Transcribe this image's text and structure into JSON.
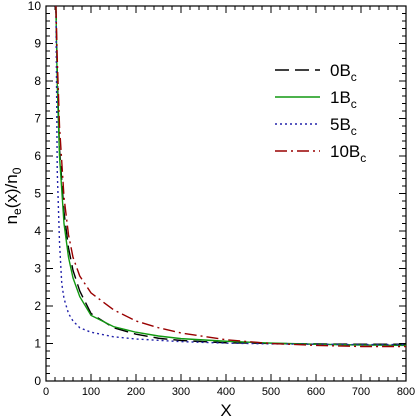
{
  "chart_data": {
    "type": "line",
    "xlabel": "X",
    "ylabel_main": "n",
    "ylabel_sub1": "e",
    "ylabel_mid": "(x)/n",
    "ylabel_sub2": "0",
    "xlim": [
      0,
      800
    ],
    "ylim": [
      0,
      10
    ],
    "xticks": [
      "0",
      "100",
      "200",
      "300",
      "400",
      "500",
      "600",
      "700",
      "800"
    ],
    "yticks": [
      "0",
      "1",
      "2",
      "3",
      "4",
      "5",
      "6",
      "7",
      "8",
      "9",
      "10"
    ],
    "grid": false,
    "legend_position": "top-right",
    "series": [
      {
        "name": "0B",
        "sub": "c",
        "color": "#000000",
        "dash": "14,6",
        "points": [
          [
            22,
            10
          ],
          [
            25,
            8.2
          ],
          [
            30,
            6.2
          ],
          [
            40,
            4.5
          ],
          [
            50,
            3.55
          ],
          [
            60,
            2.95
          ],
          [
            75,
            2.4
          ],
          [
            100,
            1.8
          ],
          [
            150,
            1.42
          ],
          [
            200,
            1.25
          ],
          [
            250,
            1.14
          ],
          [
            300,
            1.08
          ],
          [
            400,
            1.02
          ],
          [
            500,
            1.0
          ],
          [
            600,
            0.99
          ],
          [
            700,
            0.98
          ],
          [
            800,
            0.98
          ]
        ]
      },
      {
        "name": "1B",
        "sub": "c",
        "color": "#119911",
        "dash": "",
        "points": [
          [
            22,
            10
          ],
          [
            25,
            7.9
          ],
          [
            30,
            6.0
          ],
          [
            40,
            4.2
          ],
          [
            50,
            3.3
          ],
          [
            60,
            2.75
          ],
          [
            75,
            2.25
          ],
          [
            100,
            1.75
          ],
          [
            150,
            1.45
          ],
          [
            200,
            1.3
          ],
          [
            250,
            1.2
          ],
          [
            300,
            1.13
          ],
          [
            400,
            1.06
          ],
          [
            500,
            1.01
          ],
          [
            600,
            0.98
          ],
          [
            700,
            0.96
          ],
          [
            800,
            0.95
          ]
        ]
      },
      {
        "name": "5B",
        "sub": "c",
        "color": "#2222aa",
        "dash": "2,3",
        "points": [
          [
            22,
            10
          ],
          [
            25,
            5.6
          ],
          [
            30,
            3.7
          ],
          [
            35,
            2.6
          ],
          [
            40,
            2.2
          ],
          [
            50,
            1.8
          ],
          [
            60,
            1.6
          ],
          [
            75,
            1.42
          ],
          [
            100,
            1.3
          ],
          [
            150,
            1.18
          ],
          [
            200,
            1.12
          ],
          [
            300,
            1.05
          ],
          [
            400,
            1.01
          ],
          [
            500,
            0.99
          ],
          [
            600,
            0.98
          ],
          [
            700,
            0.97
          ],
          [
            800,
            0.97
          ]
        ]
      },
      {
        "name": "10B",
        "sub": "c",
        "color": "#990000",
        "dash": "12,4,2,4",
        "points": [
          [
            22,
            10
          ],
          [
            25,
            8.6
          ],
          [
            30,
            6.8
          ],
          [
            40,
            4.9
          ],
          [
            50,
            3.9
          ],
          [
            60,
            3.3
          ],
          [
            75,
            2.8
          ],
          [
            100,
            2.35
          ],
          [
            150,
            1.9
          ],
          [
            200,
            1.6
          ],
          [
            250,
            1.42
          ],
          [
            300,
            1.28
          ],
          [
            400,
            1.1
          ],
          [
            500,
            1.0
          ],
          [
            600,
            0.95
          ],
          [
            700,
            0.92
          ],
          [
            800,
            0.92
          ]
        ]
      }
    ]
  }
}
